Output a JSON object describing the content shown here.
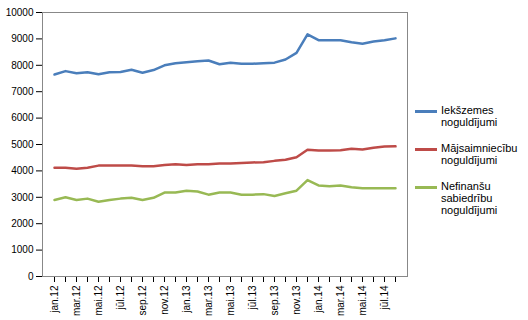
{
  "chart_data": {
    "type": "line",
    "categories": [
      "jan.12",
      null,
      "mar.12",
      null,
      "mai.12",
      null,
      "jūl.12",
      null,
      "sep.12",
      null,
      "nov.12",
      null,
      "jan.13",
      null,
      "mar.13",
      null,
      "mai.13",
      null,
      "jūl.13",
      null,
      "sep.13",
      null,
      "nov.13",
      null,
      "jan.14",
      null,
      "mar.14",
      null,
      "mai.14",
      null,
      "jūl.14",
      null
    ],
    "series": [
      {
        "name": "Iekšzemes noguldījumi",
        "color": "#4a7ebb",
        "values": [
          7650,
          7780,
          7700,
          7740,
          7660,
          7740,
          7750,
          7830,
          7720,
          7820,
          8000,
          8080,
          8120,
          8150,
          8180,
          8040,
          8100,
          8060,
          8060,
          8080,
          8100,
          8220,
          8470,
          9170,
          8950,
          8950,
          8950,
          8870,
          8820,
          8900,
          8950,
          9020
        ]
      },
      {
        "name": "Mājsaimniecību noguldījumi",
        "color": "#be4b48",
        "values": [
          4120,
          4120,
          4080,
          4120,
          4200,
          4200,
          4200,
          4200,
          4180,
          4180,
          4220,
          4250,
          4220,
          4250,
          4250,
          4280,
          4280,
          4300,
          4320,
          4330,
          4380,
          4420,
          4520,
          4800,
          4770,
          4770,
          4780,
          4840,
          4810,
          4880,
          4920,
          4930
        ]
      },
      {
        "name": "Nefinanšu sabiedrību noguldījumi",
        "color": "#98b954",
        "values": [
          2900,
          3000,
          2900,
          2950,
          2830,
          2900,
          2950,
          2980,
          2900,
          2980,
          3180,
          3180,
          3250,
          3220,
          3100,
          3180,
          3180,
          3100,
          3100,
          3120,
          3050,
          3150,
          3250,
          3650,
          3450,
          3420,
          3450,
          3380,
          3340,
          3340,
          3340,
          3340
        ]
      }
    ],
    "ylim": [
      0,
      10000
    ],
    "yticks": [
      0,
      1000,
      2000,
      3000,
      4000,
      5000,
      6000,
      7000,
      8000,
      9000,
      10000
    ],
    "grid": false,
    "legend": "right"
  }
}
